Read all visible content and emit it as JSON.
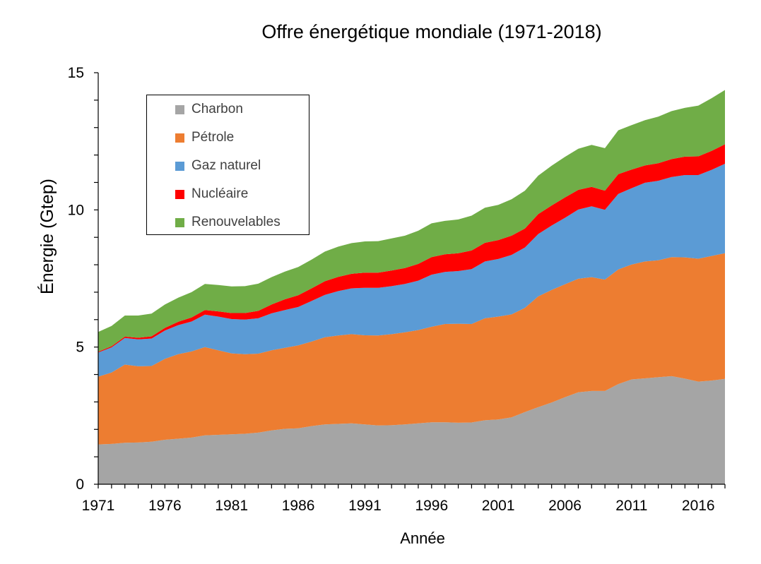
{
  "chart_data": {
    "type": "area",
    "stacked": true,
    "title": "Offre énergétique mondiale (1971-2018)",
    "xlabel": "Année",
    "ylabel": "Énergie (Gtep)",
    "xlim": [
      1971,
      2018
    ],
    "ylim": [
      0,
      15
    ],
    "x_ticks": [
      1971,
      1976,
      1981,
      1986,
      1991,
      1996,
      2001,
      2006,
      2011,
      2016
    ],
    "y_ticks": [
      0,
      5,
      10,
      15
    ],
    "grid": false,
    "legend_position": "top-left",
    "x": [
      1971,
      1972,
      1973,
      1974,
      1975,
      1976,
      1977,
      1978,
      1979,
      1980,
      1981,
      1982,
      1983,
      1984,
      1985,
      1986,
      1987,
      1988,
      1989,
      1990,
      1991,
      1992,
      1993,
      1994,
      1995,
      1996,
      1997,
      1998,
      1999,
      2000,
      2001,
      2002,
      2003,
      2004,
      2005,
      2006,
      2007,
      2008,
      2009,
      2010,
      2011,
      2012,
      2013,
      2014,
      2015,
      2016,
      2017,
      2018
    ],
    "series": [
      {
        "name": "Charbon",
        "color": "#a5a5a5",
        "values": [
          1.45,
          1.47,
          1.51,
          1.52,
          1.55,
          1.62,
          1.66,
          1.7,
          1.78,
          1.8,
          1.82,
          1.84,
          1.88,
          1.96,
          2.02,
          2.04,
          2.12,
          2.18,
          2.2,
          2.22,
          2.18,
          2.14,
          2.15,
          2.18,
          2.22,
          2.26,
          2.26,
          2.24,
          2.25,
          2.33,
          2.36,
          2.44,
          2.63,
          2.81,
          2.98,
          3.17,
          3.35,
          3.4,
          3.4,
          3.65,
          3.82,
          3.86,
          3.9,
          3.94,
          3.85,
          3.74,
          3.78,
          3.84
        ]
      },
      {
        "name": "Pétrole",
        "color": "#ed7d31",
        "values": [
          2.47,
          2.6,
          2.85,
          2.78,
          2.76,
          2.95,
          3.08,
          3.14,
          3.22,
          3.08,
          2.95,
          2.9,
          2.88,
          2.92,
          2.95,
          3.02,
          3.08,
          3.18,
          3.22,
          3.25,
          3.25,
          3.28,
          3.32,
          3.36,
          3.4,
          3.48,
          3.58,
          3.61,
          3.59,
          3.72,
          3.75,
          3.75,
          3.8,
          4.04,
          4.1,
          4.12,
          4.14,
          4.15,
          4.06,
          4.18,
          4.19,
          4.26,
          4.26,
          4.34,
          4.42,
          4.48,
          4.54,
          4.58
        ]
      },
      {
        "name": "Gaz naturel",
        "color": "#5b9bd5",
        "values": [
          0.88,
          0.92,
          0.97,
          0.98,
          1.0,
          1.03,
          1.06,
          1.09,
          1.18,
          1.23,
          1.25,
          1.26,
          1.29,
          1.35,
          1.38,
          1.4,
          1.48,
          1.54,
          1.62,
          1.67,
          1.73,
          1.74,
          1.75,
          1.76,
          1.8,
          1.9,
          1.9,
          1.92,
          2.0,
          2.07,
          2.1,
          2.17,
          2.2,
          2.27,
          2.35,
          2.42,
          2.52,
          2.58,
          2.54,
          2.75,
          2.78,
          2.87,
          2.9,
          2.92,
          3.0,
          3.05,
          3.14,
          3.26
        ]
      },
      {
        "name": "Nucléaire",
        "color": "#ff0000",
        "values": [
          0.03,
          0.04,
          0.05,
          0.06,
          0.08,
          0.1,
          0.12,
          0.15,
          0.17,
          0.19,
          0.22,
          0.24,
          0.27,
          0.32,
          0.39,
          0.43,
          0.46,
          0.5,
          0.52,
          0.53,
          0.55,
          0.55,
          0.57,
          0.58,
          0.61,
          0.64,
          0.64,
          0.65,
          0.68,
          0.68,
          0.69,
          0.7,
          0.69,
          0.73,
          0.73,
          0.74,
          0.72,
          0.71,
          0.7,
          0.72,
          0.68,
          0.63,
          0.64,
          0.65,
          0.67,
          0.68,
          0.69,
          0.71
        ]
      },
      {
        "name": "Renouvelables",
        "color": "#70ad47",
        "values": [
          0.72,
          0.74,
          0.77,
          0.81,
          0.83,
          0.85,
          0.88,
          0.92,
          0.95,
          0.96,
          0.97,
          0.98,
          0.99,
          1.0,
          1.01,
          1.03,
          1.05,
          1.08,
          1.1,
          1.12,
          1.14,
          1.15,
          1.17,
          1.18,
          1.21,
          1.23,
          1.22,
          1.23,
          1.27,
          1.28,
          1.28,
          1.33,
          1.38,
          1.4,
          1.45,
          1.48,
          1.5,
          1.53,
          1.55,
          1.6,
          1.62,
          1.65,
          1.7,
          1.75,
          1.78,
          1.85,
          1.92,
          1.98
        ]
      }
    ]
  }
}
